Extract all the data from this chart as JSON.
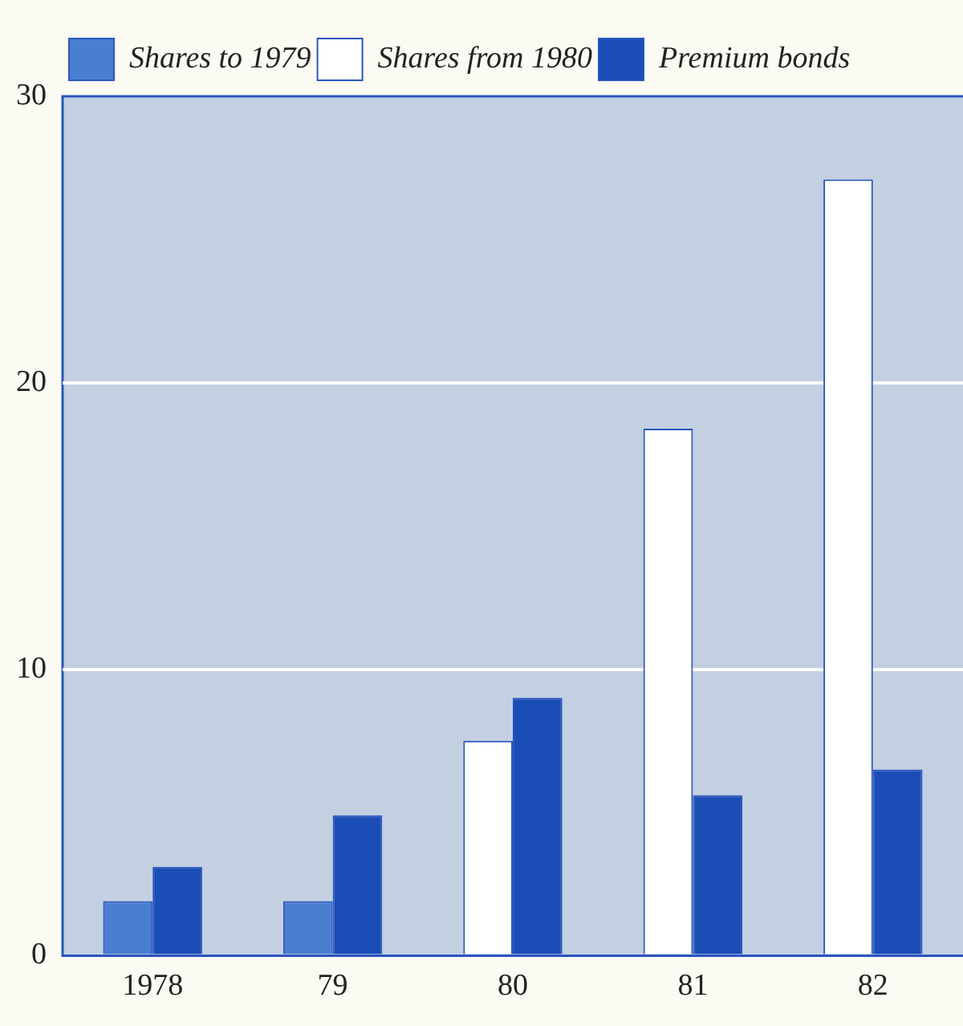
{
  "chart_data": {
    "type": "bar",
    "categories": [
      "1978",
      "79",
      "80",
      "81",
      "82"
    ],
    "series": [
      {
        "name": "Shares to 1979",
        "color": "#4a7fd0",
        "values": [
          1.9,
          1.9,
          null,
          null,
          null
        ]
      },
      {
        "name": "Shares from 1980",
        "color": "#ffffff",
        "values": [
          null,
          null,
          7.5,
          18.4,
          27.1
        ]
      },
      {
        "name": "Premium bonds",
        "color": "#1a4db5",
        "values": [
          3.1,
          4.9,
          9.0,
          5.6,
          6.5
        ]
      }
    ],
    "ylim": [
      0,
      30
    ],
    "yticks": [
      0,
      10,
      20,
      30
    ],
    "grid": "y",
    "legend": "top left"
  }
}
